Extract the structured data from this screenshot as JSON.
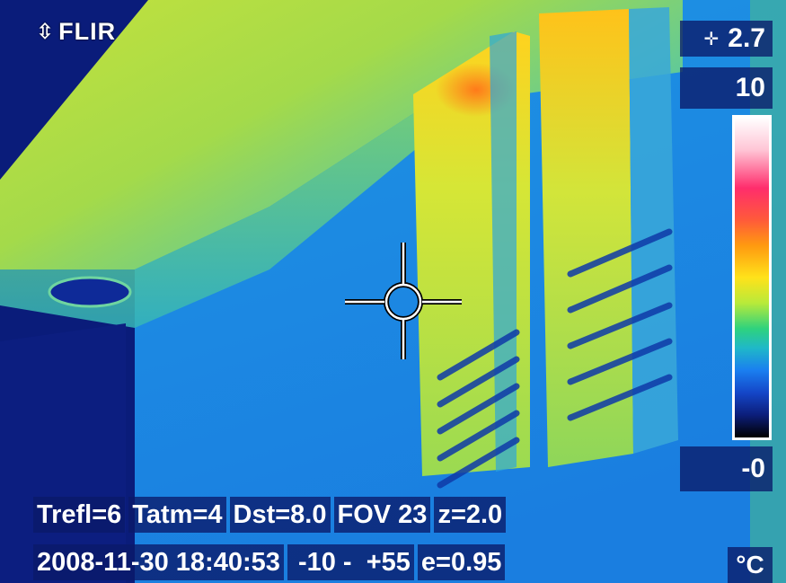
{
  "brand": {
    "name": "FLIR",
    "logo_icon": "flir-logo-icon"
  },
  "measurement": {
    "spot_icon": "crosshair-icon",
    "spot_value": "2.7"
  },
  "scale": {
    "max": "10",
    "min": "-0",
    "unit": "°C"
  },
  "params_row1": [
    "Trefl=6",
    "Tatm=4",
    "Dst=8.0",
    "FOV 23",
    "z=2.0"
  ],
  "params_row2": [
    "2008-11-30 18:40:53",
    " -10 -  +55",
    "e=0.95"
  ],
  "colors": {
    "overlay": "#0a1a6e",
    "text": "#ffffff"
  }
}
